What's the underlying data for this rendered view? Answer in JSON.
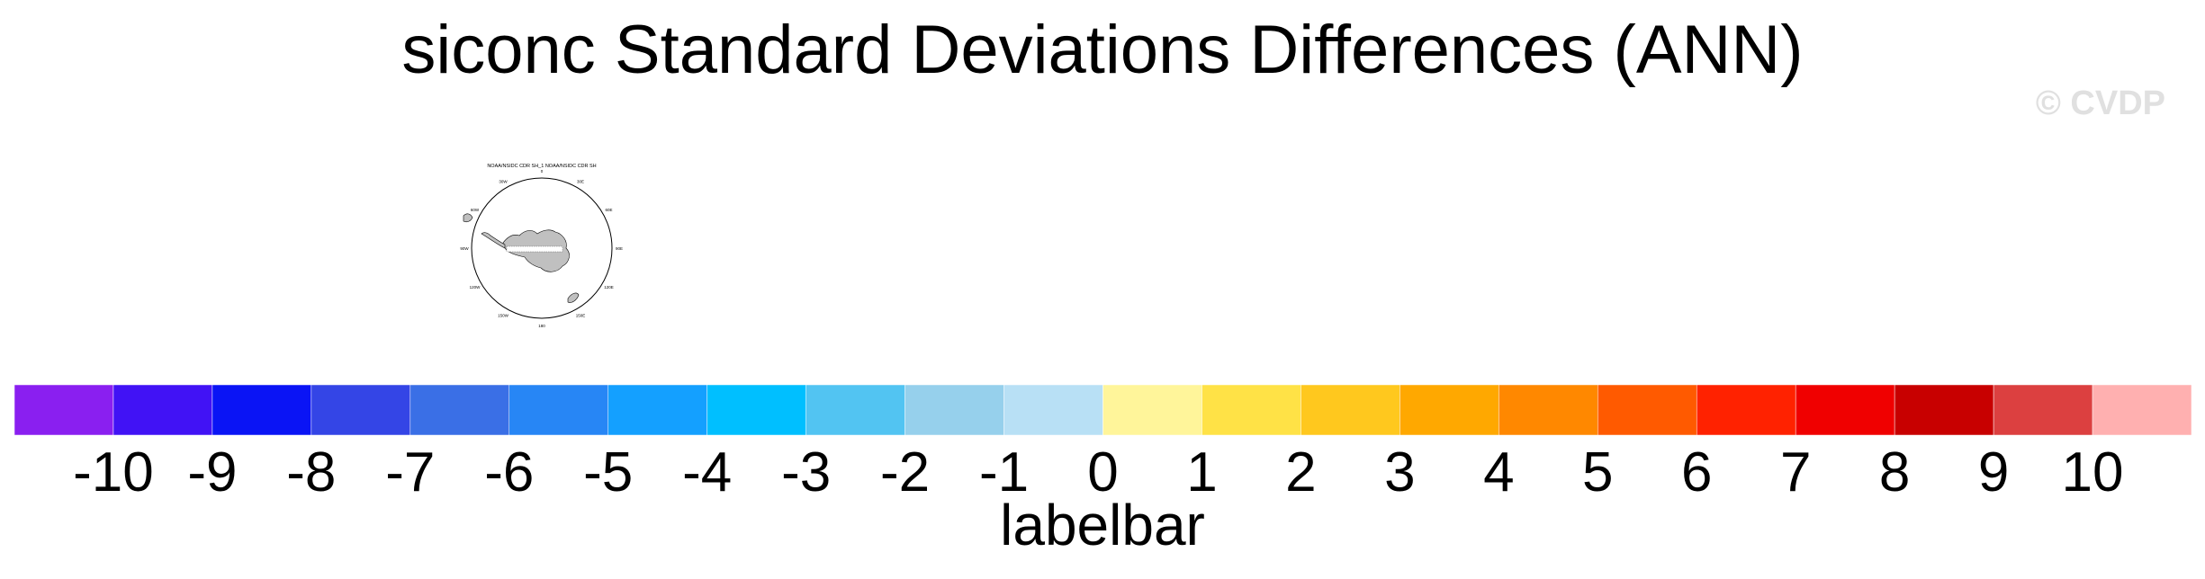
{
  "title": "siconc Standard Deviations Differences (ANN)",
  "watermark": "© CVDP",
  "map_panel": {
    "caption": "NOAA/NSIDC CDR SH_1 NOAA/NSIDC CDR SH",
    "lon_labels": [
      "0",
      "30E",
      "60E",
      "90E",
      "120E",
      "150E",
      "180",
      "150W",
      "120W",
      "90W",
      "60W",
      "30W"
    ]
  },
  "chart_data": {
    "type": "heatmap",
    "title": "siconc Standard Deviations Differences (ANN)",
    "colorbar": {
      "label": "labelbar",
      "levels": [
        -10,
        -9,
        -8,
        -7,
        -6,
        -5,
        -4,
        -3,
        -2,
        -1,
        0,
        1,
        2,
        3,
        4,
        5,
        6,
        7,
        8,
        9,
        10
      ],
      "tick_labels": [
        "-10",
        "-9",
        "-8",
        "-7",
        "-6",
        "-5",
        "-4",
        "-3",
        "-2",
        "-1",
        "0",
        "1",
        "2",
        "3",
        "4",
        "5",
        "6",
        "7",
        "8",
        "9",
        "10"
      ],
      "colors": [
        "#8a1ff0",
        "#4112f5",
        "#0a14f5",
        "#3445e6",
        "#3a6fe6",
        "#2786f5",
        "#14a0ff",
        "#00bfff",
        "#52c4f2",
        "#96d0ec",
        "#b8e0f5",
        "#fff59a",
        "#ffe246",
        "#ffc81e",
        "#ffa800",
        "#ff8800",
        "#ff5a00",
        "#ff2200",
        "#f00000",
        "#c80000",
        "#dc4040",
        "#ffb0b0"
      ]
    }
  }
}
